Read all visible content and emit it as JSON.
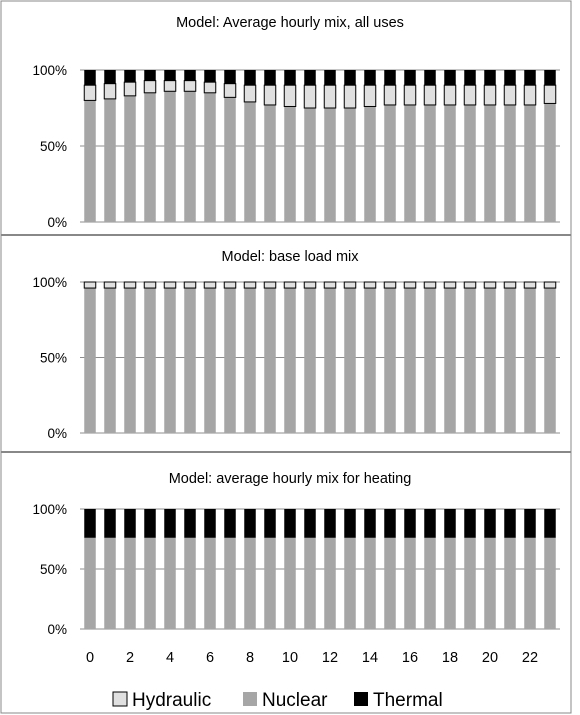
{
  "chart_data": [
    {
      "type": "bar",
      "stacked": true,
      "normalized": true,
      "title": "Model: Average hourly mix, all uses",
      "x": [
        0,
        1,
        2,
        3,
        4,
        5,
        6,
        7,
        8,
        9,
        10,
        11,
        12,
        13,
        14,
        15,
        16,
        17,
        18,
        19,
        20,
        21,
        22,
        23
      ],
      "yticks": [
        "0%",
        "50%",
        "100%"
      ],
      "ylim": [
        0,
        100
      ],
      "grid": true,
      "series": [
        {
          "name": "Nuclear",
          "values": [
            80,
            81,
            83,
            85,
            86,
            86,
            85,
            82,
            79,
            77,
            76,
            75,
            75,
            75,
            76,
            77,
            77,
            77,
            77,
            77,
            77,
            77,
            77,
            78
          ]
        },
        {
          "name": "Hydraulic",
          "values": [
            10,
            10,
            9,
            8,
            7,
            7,
            7,
            9,
            11,
            13,
            14,
            15,
            15,
            15,
            14,
            13,
            13,
            13,
            13,
            13,
            13,
            13,
            13,
            12
          ]
        },
        {
          "name": "Thermal",
          "values": [
            10,
            9,
            8,
            7,
            7,
            7,
            8,
            9,
            10,
            10,
            10,
            10,
            10,
            10,
            10,
            10,
            10,
            10,
            10,
            10,
            10,
            10,
            10,
            10
          ]
        }
      ]
    },
    {
      "type": "bar",
      "stacked": true,
      "normalized": true,
      "title": "Model: base load mix",
      "x": [
        0,
        1,
        2,
        3,
        4,
        5,
        6,
        7,
        8,
        9,
        10,
        11,
        12,
        13,
        14,
        15,
        16,
        17,
        18,
        19,
        20,
        21,
        22,
        23
      ],
      "yticks": [
        "0%",
        "50%",
        "100%"
      ],
      "ylim": [
        0,
        100
      ],
      "grid": true,
      "series": [
        {
          "name": "Nuclear",
          "values": [
            96,
            96,
            96,
            96,
            96,
            96,
            96,
            96,
            96,
            96,
            96,
            96,
            96,
            96,
            96,
            96,
            96,
            96,
            96,
            96,
            96,
            96,
            96,
            96
          ]
        },
        {
          "name": "Hydraulic",
          "values": [
            4,
            4,
            4,
            4,
            4,
            4,
            4,
            4,
            4,
            4,
            4,
            4,
            4,
            4,
            4,
            4,
            4,
            4,
            4,
            4,
            4,
            4,
            4,
            4
          ]
        },
        {
          "name": "Thermal",
          "values": [
            0,
            0,
            0,
            0,
            0,
            0,
            0,
            0,
            0,
            0,
            0,
            0,
            0,
            0,
            0,
            0,
            0,
            0,
            0,
            0,
            0,
            0,
            0,
            0
          ]
        }
      ]
    },
    {
      "type": "bar",
      "stacked": true,
      "normalized": true,
      "title": "Model: average hourly mix  for heating",
      "x": [
        0,
        1,
        2,
        3,
        4,
        5,
        6,
        7,
        8,
        9,
        10,
        11,
        12,
        13,
        14,
        15,
        16,
        17,
        18,
        19,
        20,
        21,
        22,
        23
      ],
      "xticks": [
        "0",
        "2",
        "4",
        "6",
        "8",
        "10",
        "12",
        "14",
        "16",
        "18",
        "20",
        "22"
      ],
      "yticks": [
        "0%",
        "50%",
        "100%"
      ],
      "ylim": [
        0,
        100
      ],
      "grid": true,
      "series": [
        {
          "name": "Nuclear",
          "values": [
            76,
            76,
            76,
            76,
            76,
            76,
            76,
            76,
            76,
            76,
            76,
            76,
            76,
            76,
            76,
            76,
            76,
            76,
            76,
            76,
            76,
            76,
            76,
            76
          ]
        },
        {
          "name": "Hydraulic",
          "values": [
            0,
            0,
            0,
            0,
            0,
            0,
            0,
            0,
            0,
            0,
            0,
            0,
            0,
            0,
            0,
            0,
            0,
            0,
            0,
            0,
            0,
            0,
            0,
            0
          ]
        },
        {
          "name": "Thermal",
          "values": [
            24,
            24,
            24,
            24,
            24,
            24,
            24,
            24,
            24,
            24,
            24,
            24,
            24,
            24,
            24,
            24,
            24,
            24,
            24,
            24,
            24,
            24,
            24,
            24
          ]
        }
      ]
    }
  ],
  "legend": {
    "placement": "bottom",
    "items": [
      {
        "label": "Hydraulic",
        "color": "#e0e0e0",
        "outline": "#000000"
      },
      {
        "label": "Nuclear",
        "color": "#a6a6a6"
      },
      {
        "label": "Thermal",
        "color": "#000000"
      }
    ]
  },
  "colors": {
    "Nuclear": "#a6a6a6",
    "Hydraulic": "#e0e0e0",
    "Thermal": "#000000",
    "grid": "#8c8c8c",
    "frame": "#888888"
  }
}
